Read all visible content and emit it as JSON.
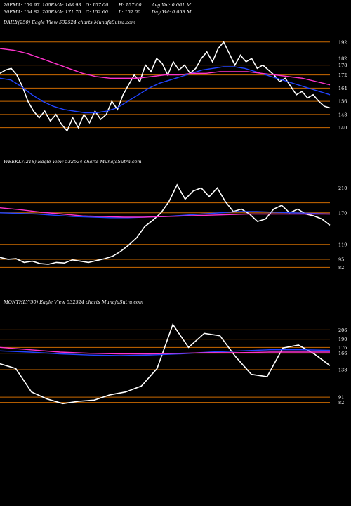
{
  "header": {
    "row1": [
      "20EMA: 159.97",
      "100EMA: 168.93",
      "O: 157.00",
      "H: 157.00",
      "Avg Vol: 0.061 M"
    ],
    "row2": [
      "30EMA: 164.82",
      "200EMA: 171.76",
      "C: 152.60",
      "L: 152.00",
      "Day Vol: 0.058 M"
    ]
  },
  "colors": {
    "bg": "#000000",
    "price": "#ffffff",
    "ema_blue": "#2244ff",
    "ema_pink": "#ff33cc",
    "level": "#cc6a00"
  },
  "chart_data": [
    {
      "type": "line",
      "title": "DAILY(250) Eagle  View  532524  charts MunafaSutra.com",
      "yticks": [
        192,
        182,
        178,
        172,
        164,
        156,
        148,
        140
      ],
      "ylim": [
        136,
        200
      ],
      "levels": [
        192,
        178,
        172,
        164,
        156,
        148,
        140
      ],
      "series": [
        {
          "role": "price",
          "values": [
            173,
            175,
            176,
            172,
            165,
            156,
            150,
            146,
            150,
            144,
            148,
            142,
            138,
            146,
            140,
            148,
            143,
            150,
            145,
            148,
            156,
            151,
            160,
            166,
            172,
            168,
            178,
            174,
            182,
            179,
            172,
            180,
            175,
            178,
            173,
            176,
            182,
            186,
            180,
            188,
            192,
            185,
            178,
            184,
            180,
            182,
            176,
            178,
            175,
            172,
            168,
            170,
            165,
            160,
            162,
            158,
            160,
            156,
            153,
            152
          ]
        },
        {
          "role": "ema",
          "color": "#2244ff",
          "values": [
            170,
            169,
            165,
            160,
            156,
            153,
            151,
            150,
            149,
            149,
            150,
            152,
            156,
            160,
            164,
            167,
            169,
            171,
            173,
            175,
            176,
            177,
            177,
            176,
            174,
            172,
            170,
            168,
            166,
            164,
            162,
            160
          ]
        },
        {
          "role": "ema",
          "color": "#ff33cc",
          "values": [
            188,
            187,
            185,
            182,
            179,
            176,
            173,
            171,
            170,
            170,
            170,
            171,
            172,
            172,
            173,
            173,
            174,
            174,
            174,
            173,
            172,
            171,
            170,
            168,
            166
          ]
        }
      ]
    },
    {
      "type": "line",
      "title": "WEEKLY(218) Eagle  View  532524  charts MunafaSutra.com",
      "yticks": [
        210,
        170,
        119,
        95,
        82
      ],
      "ylim": [
        70,
        240
      ],
      "levels": [
        210,
        186,
        170,
        119,
        95,
        82
      ],
      "series": [
        {
          "role": "price",
          "values": [
            98,
            95,
            96,
            90,
            92,
            88,
            87,
            90,
            89,
            94,
            92,
            90,
            93,
            96,
            100,
            108,
            118,
            130,
            148,
            158,
            170,
            188,
            215,
            192,
            205,
            210,
            196,
            210,
            188,
            172,
            176,
            168,
            156,
            160,
            176,
            182,
            170,
            176,
            168,
            165,
            160,
            150
          ]
        },
        {
          "role": "ema",
          "color": "#2244ff",
          "values": [
            170,
            169,
            168,
            166,
            164,
            163,
            162,
            162,
            163,
            164,
            166,
            168,
            170,
            172,
            172,
            171,
            170,
            169,
            168
          ]
        },
        {
          "role": "ema",
          "color": "#ff33cc",
          "values": [
            178,
            175,
            171,
            168,
            165,
            164,
            163,
            163,
            164,
            165,
            166,
            167,
            168,
            168,
            168,
            168,
            168
          ]
        }
      ]
    },
    {
      "type": "line",
      "title": "MONTHLY(50) Eagle  View  532524  charts MunafaSutra.com",
      "yticks": [
        206,
        190,
        176,
        166,
        138,
        91,
        82
      ],
      "ylim": [
        60,
        240
      ],
      "levels": [
        206,
        190,
        176,
        166,
        138,
        91,
        82
      ],
      "series": [
        {
          "role": "price",
          "values": [
            148,
            140,
            100,
            88,
            80,
            84,
            86,
            95,
            100,
            110,
            140,
            215,
            176,
            200,
            196,
            160,
            130,
            126,
            175,
            180,
            165,
            145
          ]
        },
        {
          "role": "ema",
          "color": "#2244ff",
          "values": [
            170,
            168,
            165,
            163,
            162,
            163,
            165,
            168,
            170,
            172,
            172,
            171
          ]
        },
        {
          "role": "ema",
          "color": "#ff33cc",
          "values": [
            176,
            172,
            168,
            166,
            165,
            165,
            166,
            167,
            167,
            168,
            168,
            168
          ]
        }
      ]
    }
  ]
}
